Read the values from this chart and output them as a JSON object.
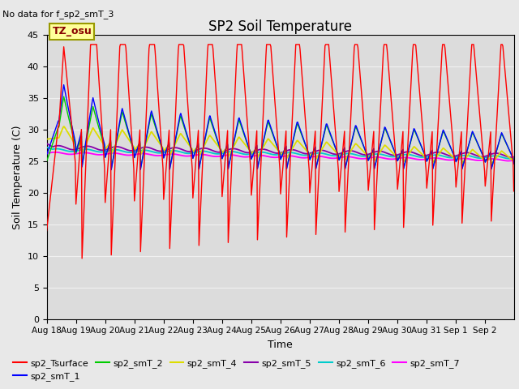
{
  "title": "SP2 Soil Temperature",
  "subtitle": "No data for f_sp2_smT_3",
  "xlabel": "Time",
  "ylabel": "Soil Temperature (C)",
  "ylim": [
    0,
    45
  ],
  "tz_label": "TZ_osu",
  "fig_bg_color": "#e8e8e8",
  "plot_bg_color": "#dcdcdc",
  "grid_color": "#f0f0f0",
  "x_tick_labels": [
    "Aug 18",
    "Aug 19",
    "Aug 20",
    "Aug 21",
    "Aug 22",
    "Aug 23",
    "Aug 24",
    "Aug 25",
    "Aug 26",
    "Aug 27",
    "Aug 28",
    "Aug 29",
    "Aug 30",
    "Aug 31",
    "Sep 1",
    "Sep 2"
  ],
  "legend_entries": [
    {
      "label": "sp2_Tsurface",
      "color": "#ff0000"
    },
    {
      "label": "sp2_smT_1",
      "color": "#0000ff"
    },
    {
      "label": "sp2_smT_2",
      "color": "#00cc00"
    },
    {
      "label": "sp2_smT_4",
      "color": "#dddd00"
    },
    {
      "label": "sp2_smT_5",
      "color": "#8800aa"
    },
    {
      "label": "sp2_smT_6",
      "color": "#00cccc"
    },
    {
      "label": "sp2_smT_7",
      "color": "#ff00ff"
    }
  ],
  "seed": 42
}
